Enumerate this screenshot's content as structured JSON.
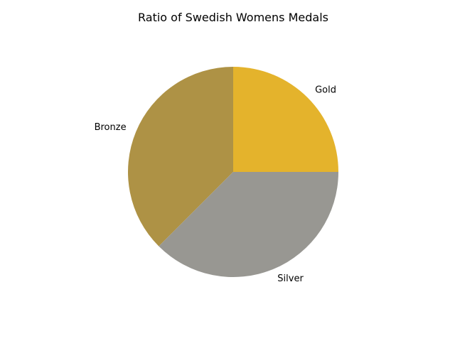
{
  "chart_data": {
    "type": "pie",
    "title": "Ratio of Swedish Womens Medals",
    "categories": [
      "Gold",
      "Bronze",
      "Silver"
    ],
    "values": [
      25,
      37.5,
      37.5
    ],
    "colors": [
      "#e4b32c",
      "#ae9245",
      "#989792"
    ],
    "start_angle_deg": 0,
    "direction": "counterclockwise",
    "legend": "none",
    "grid": false
  }
}
